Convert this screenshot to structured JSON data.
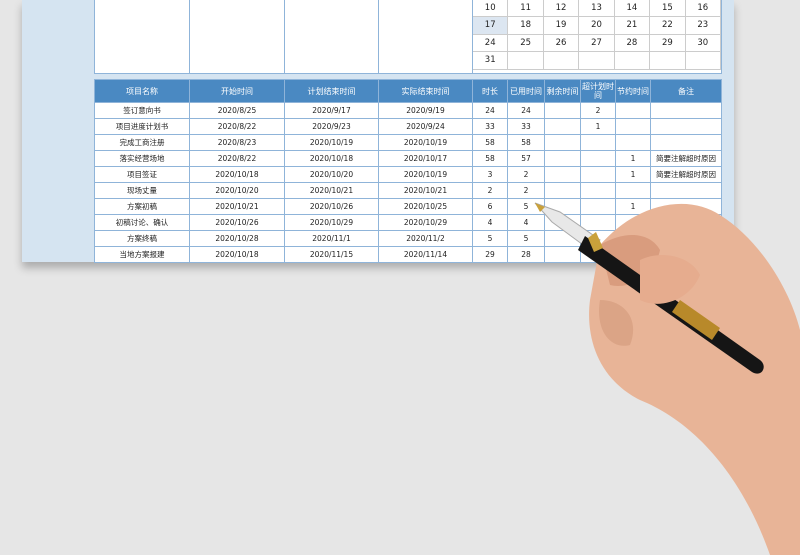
{
  "calendar": {
    "rows": [
      [
        "10",
        "11",
        "12",
        "13",
        "14",
        "15",
        "16"
      ],
      [
        "17",
        "18",
        "19",
        "20",
        "21",
        "22",
        "23"
      ],
      [
        "24",
        "25",
        "26",
        "27",
        "28",
        "29",
        "30"
      ],
      [
        "31",
        "",
        "",
        "",
        "",
        "",
        ""
      ]
    ],
    "highlighted": "17"
  },
  "table": {
    "headers": [
      "项目名称",
      "开始时间",
      "计划结束时间",
      "实际结束时间",
      "时长",
      "已用时间",
      "剩余时间",
      "超计划时间",
      "节约时间",
      "备注"
    ],
    "rows": [
      [
        "签订意向书",
        "2020/8/25",
        "2020/9/17",
        "2020/9/19",
        "24",
        "24",
        "",
        "2",
        "",
        ""
      ],
      [
        "项目进度计划书",
        "2020/8/22",
        "2020/9/23",
        "2020/9/24",
        "33",
        "33",
        "",
        "1",
        "",
        ""
      ],
      [
        "完成工商注册",
        "2020/8/23",
        "2020/10/19",
        "2020/10/19",
        "58",
        "58",
        "",
        "",
        "",
        ""
      ],
      [
        "落实经营场地",
        "2020/8/22",
        "2020/10/18",
        "2020/10/17",
        "58",
        "57",
        "",
        "",
        "1",
        "简要注解超时原因"
      ],
      [
        "项目签证",
        "2020/10/18",
        "2020/10/20",
        "2020/10/19",
        "3",
        "2",
        "",
        "",
        "1",
        "简要注解超时原因"
      ],
      [
        "现场丈量",
        "2020/10/20",
        "2020/10/21",
        "2020/10/21",
        "2",
        "2",
        "",
        "",
        "",
        ""
      ],
      [
        "方案初稿",
        "2020/10/21",
        "2020/10/26",
        "2020/10/25",
        "6",
        "5",
        "",
        "",
        "1",
        ""
      ],
      [
        "初稿讨论、确认",
        "2020/10/26",
        "2020/10/29",
        "2020/10/29",
        "4",
        "4",
        "",
        "",
        "",
        ""
      ],
      [
        "方案终稿",
        "2020/10/28",
        "2020/11/1",
        "2020/11/2",
        "5",
        "5",
        "",
        "",
        "",
        ""
      ],
      [
        "当地方案报建",
        "2020/10/18",
        "2020/11/15",
        "2020/11/14",
        "29",
        "28",
        "",
        "",
        "",
        ""
      ]
    ]
  },
  "colors": {
    "header": "#4a89c2",
    "frame": "#d5e4f1",
    "grid": "#8fb4d9"
  }
}
